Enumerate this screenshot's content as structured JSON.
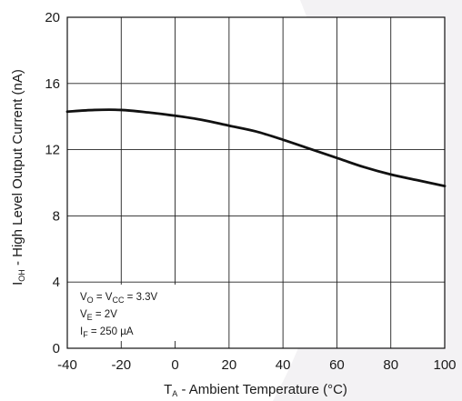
{
  "chart_data": {
    "type": "line",
    "xlabel": {
      "symbol": "T",
      "sub": "A",
      "text": " - Ambient Temperature (°C)"
    },
    "ylabel": {
      "symbol": "I",
      "sub": "OH",
      "text": " - High Level Output Current (nA)"
    },
    "xlim": [
      -40,
      100
    ],
    "ylim": [
      0,
      20
    ],
    "x_ticks": [
      "-40",
      "-20",
      "0",
      "20",
      "40",
      "60",
      "80",
      "100"
    ],
    "y_ticks": [
      "0",
      "4",
      "8",
      "12",
      "16",
      "20"
    ],
    "grid": true,
    "series": [
      {
        "color": "#111111",
        "x": [
          -40,
          -30,
          -20,
          -10,
          0,
          10,
          20,
          30,
          40,
          50,
          60,
          70,
          80,
          90,
          100
        ],
        "y": [
          14.3,
          14.4,
          14.4,
          14.25,
          14.05,
          13.8,
          13.45,
          13.1,
          12.6,
          12.05,
          11.5,
          10.95,
          10.5,
          10.15,
          9.8
        ]
      }
    ],
    "conditions": [
      {
        "parts": [
          [
            "V",
            ""
          ],
          [
            "O",
            "sub"
          ],
          [
            " = V",
            ""
          ],
          [
            "CC",
            "sub"
          ],
          [
            " = 3.3V",
            ""
          ]
        ]
      },
      {
        "parts": [
          [
            "V",
            ""
          ],
          [
            "E",
            "sub"
          ],
          [
            " = 2V",
            ""
          ]
        ]
      },
      {
        "parts": [
          [
            "I",
            ""
          ],
          [
            "F",
            "sub"
          ],
          [
            " = 250 µA",
            ""
          ]
        ]
      }
    ]
  }
}
